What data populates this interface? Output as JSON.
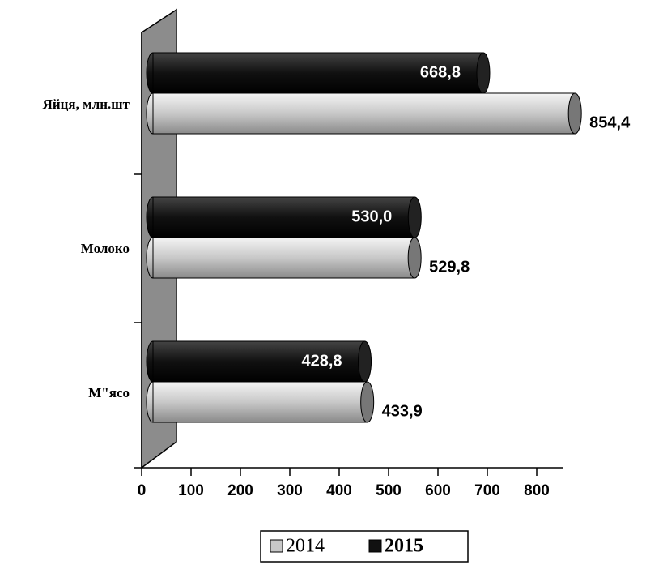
{
  "chart_data": {
    "type": "bar",
    "orientation": "horizontal",
    "categories": [
      "Яйця, млн.шт",
      "Молоко",
      "М\"ясо"
    ],
    "series": [
      {
        "name": "2014",
        "color": "#c8c8c8",
        "values": [
          854.4,
          529.8,
          433.9
        ],
        "value_labels": [
          "854,4",
          "529,8",
          "433,9"
        ]
      },
      {
        "name": "2015",
        "color": "#111111",
        "values": [
          668.8,
          530.0,
          428.8
        ],
        "value_labels": [
          "668,8",
          "530,0",
          "428,8"
        ]
      }
    ],
    "xlim": [
      0,
      850
    ],
    "xticks": [
      0,
      100,
      200,
      300,
      400,
      500,
      600,
      700,
      800
    ]
  }
}
